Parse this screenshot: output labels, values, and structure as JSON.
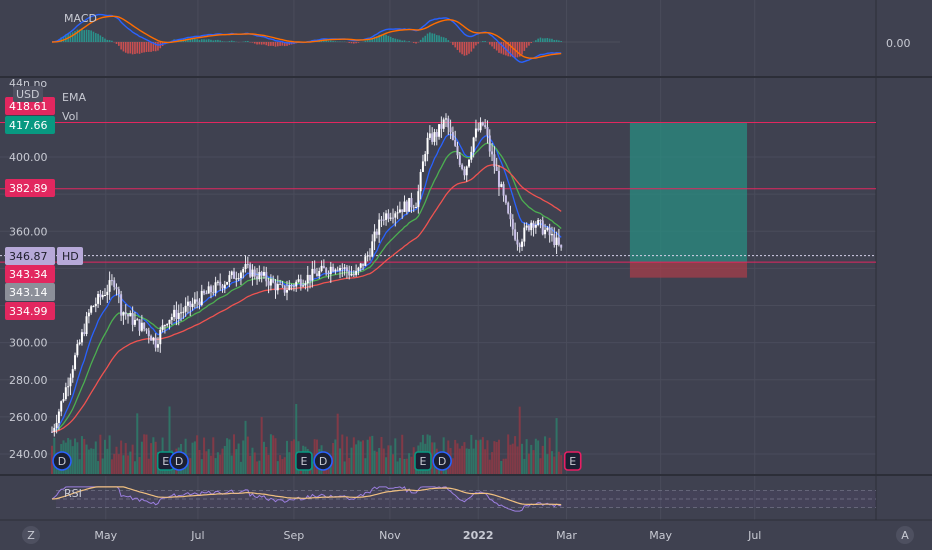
{
  "chart_data": {
    "type": "candlestick",
    "panels": {
      "macd": {
        "label": "MACD",
        "zero_label": "0.00"
      },
      "price": {
        "currency": "USD",
        "indicator_labels": [
          "EMA",
          "Vol"
        ],
        "yticks": [
          240,
          260,
          280,
          300,
          320,
          340,
          360,
          380,
          400
        ],
        "ytick_labels": [
          "240.00",
          "260.00",
          "280.00",
          "300.00",
          "",
          "",
          "360.00",
          "",
          "400.00"
        ],
        "ylim": [
          230,
          440
        ],
        "top_partial_label": "44n no",
        "horizontal_levels": [
          418.61,
          382.89,
          346.87,
          343.34
        ]
      },
      "rsi": {
        "label": "RSI",
        "bands": [
          70,
          50,
          30
        ]
      }
    },
    "x_labels": [
      {
        "label": "May",
        "t": 0.28
      },
      {
        "label": "Jul",
        "t": 0.76
      },
      {
        "label": "Sep",
        "t": 1.26
      },
      {
        "label": "Nov",
        "t": 1.76
      },
      {
        "label": "2022",
        "t": 2.22
      },
      {
        "label": "Mar",
        "t": 2.68
      },
      {
        "label": "May",
        "t": 3.17
      },
      {
        "label": "Jul",
        "t": 3.66
      }
    ],
    "price_tags": [
      {
        "value": "418.61",
        "color": "#e2275f",
        "text_color": "#ffffff"
      },
      {
        "value": "417.66",
        "color": "#089981",
        "text_color": "#ffffff"
      },
      {
        "value": "382.89",
        "color": "#e2275f",
        "text_color": "#ffffff"
      },
      {
        "value": "346.87",
        "color": "#b7a9d9",
        "text_color": "#1e1e2a",
        "extra": "HD"
      },
      {
        "value": "343.34",
        "color": "#e2275f",
        "text_color": "#ffffff"
      },
      {
        "value": "343.14",
        "color": "#8c8f99",
        "text_color": "#ffffff"
      },
      {
        "value": "334.99",
        "color": "#e2275f",
        "text_color": "#ffffff"
      }
    ],
    "price_keypoints": [
      [
        0.0,
        252
      ],
      [
        0.05,
        268
      ],
      [
        0.12,
        292
      ],
      [
        0.2,
        318
      ],
      [
        0.28,
        328
      ],
      [
        0.33,
        334
      ],
      [
        0.36,
        318
      ],
      [
        0.42,
        312
      ],
      [
        0.5,
        306
      ],
      [
        0.54,
        300
      ],
      [
        0.6,
        313
      ],
      [
        0.7,
        318
      ],
      [
        0.8,
        326
      ],
      [
        0.9,
        333
      ],
      [
        1.0,
        340
      ],
      [
        1.12,
        334
      ],
      [
        1.2,
        328
      ],
      [
        1.3,
        334
      ],
      [
        1.4,
        338
      ],
      [
        1.48,
        342
      ],
      [
        1.58,
        336
      ],
      [
        1.65,
        348
      ],
      [
        1.72,
        368
      ],
      [
        1.8,
        372
      ],
      [
        1.9,
        376
      ],
      [
        1.95,
        408
      ],
      [
        2.0,
        412
      ],
      [
        2.05,
        420
      ],
      [
        2.1,
        404
      ],
      [
        2.15,
        392
      ],
      [
        2.2,
        412
      ],
      [
        2.25,
        418
      ],
      [
        2.28,
        404
      ],
      [
        2.33,
        386
      ],
      [
        2.38,
        366
      ],
      [
        2.43,
        354
      ],
      [
        2.5,
        366
      ],
      [
        2.55,
        362
      ],
      [
        2.62,
        355
      ],
      [
        2.66,
        348
      ]
    ],
    "ema": {
      "fast": {
        "color": "#2962ff",
        "values_at": "computed from price_keypoints"
      },
      "mid": {
        "color": "#4caf50"
      },
      "slow": {
        "color": "#ef5350"
      }
    },
    "trade_box": {
      "entry": 343.34,
      "target": 418.61,
      "stop": 334.99,
      "t_start": 3.01,
      "t_end": 3.62,
      "profit_color": "#2a8c80",
      "loss_color": "#a63d4a"
    },
    "event_markers": [
      {
        "letter": "D",
        "t": 0.0,
        "color": "#2962ff"
      },
      {
        "letter": "E",
        "t": 0.54,
        "color": "#089981"
      },
      {
        "letter": "D",
        "t": 0.61,
        "color": "#2962ff"
      },
      {
        "letter": "E",
        "t": 1.26,
        "color": "#089981"
      },
      {
        "letter": "D",
        "t": 1.36,
        "color": "#2962ff"
      },
      {
        "letter": "E",
        "t": 1.88,
        "color": "#089981"
      },
      {
        "letter": "D",
        "t": 1.98,
        "color": "#2962ff"
      },
      {
        "letter": "E",
        "t": 2.66,
        "color": "#e91e63"
      }
    ],
    "side_buttons": {
      "left": "Z",
      "right": "A"
    }
  }
}
